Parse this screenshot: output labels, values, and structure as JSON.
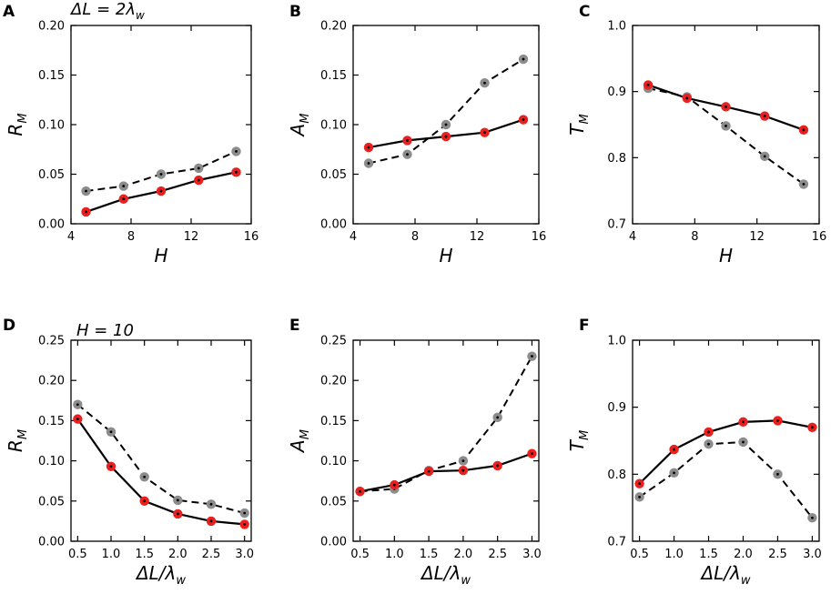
{
  "figure": {
    "colors": {
      "series_a": "#e8201e",
      "series_b": "#8c8c8c",
      "line": "#000000"
    }
  },
  "chart_data": [
    {
      "id": "A",
      "type": "line",
      "panel_letter": "A",
      "annotation": "ΔL = 2λw",
      "xlabel": "H",
      "ylabel": "RM",
      "xlim": [
        4,
        16
      ],
      "xticks": [
        4,
        8,
        12,
        16
      ],
      "xtick_labels": [
        "4",
        "8",
        "12",
        "16"
      ],
      "ylim": [
        0,
        0.2
      ],
      "yticks": [
        0,
        0.05,
        0.1,
        0.15,
        0.2
      ],
      "ytick_labels": [
        "0.00",
        "0.05",
        "0.10",
        "0.15",
        "0.20"
      ],
      "x": [
        5,
        7.5,
        10,
        12.5,
        15
      ],
      "series": [
        {
          "name": "solid",
          "style": "solid",
          "marker_color": "#e8201e",
          "values": [
            0.012,
            0.025,
            0.033,
            0.044,
            0.052
          ]
        },
        {
          "name": "dashed",
          "style": "dashed",
          "marker_color": "#8c8c8c",
          "values": [
            0.033,
            0.038,
            0.05,
            0.056,
            0.073
          ]
        }
      ]
    },
    {
      "id": "B",
      "type": "line",
      "panel_letter": "B",
      "annotation": "",
      "xlabel": "H",
      "ylabel": "AM",
      "xlim": [
        4,
        16
      ],
      "xticks": [
        4,
        8,
        12,
        16
      ],
      "xtick_labels": [
        "4",
        "8",
        "12",
        "16"
      ],
      "ylim": [
        0,
        0.2
      ],
      "yticks": [
        0,
        0.05,
        0.1,
        0.15,
        0.2
      ],
      "ytick_labels": [
        "0.00",
        "0.05",
        "0.10",
        "0.15",
        "0.20"
      ],
      "x": [
        5,
        7.5,
        10,
        12.5,
        15
      ],
      "series": [
        {
          "name": "solid",
          "style": "solid",
          "marker_color": "#e8201e",
          "values": [
            0.077,
            0.084,
            0.088,
            0.092,
            0.105
          ]
        },
        {
          "name": "dashed",
          "style": "dashed",
          "marker_color": "#8c8c8c",
          "values": [
            0.061,
            0.07,
            0.1,
            0.142,
            0.166
          ]
        }
      ]
    },
    {
      "id": "C",
      "type": "line",
      "panel_letter": "C",
      "annotation": "",
      "xlabel": "H",
      "ylabel": "TM",
      "xlim": [
        4,
        16
      ],
      "xticks": [
        4,
        8,
        12,
        16
      ],
      "xtick_labels": [
        "4",
        "8",
        "12",
        "16"
      ],
      "ylim": [
        0.7,
        1.0
      ],
      "yticks": [
        0.7,
        0.8,
        0.9,
        1.0
      ],
      "ytick_labels": [
        "0.7",
        "0.8",
        "0.9",
        "1.0"
      ],
      "x": [
        5,
        7.5,
        10,
        12.5,
        15
      ],
      "series": [
        {
          "name": "solid",
          "style": "solid",
          "marker_color": "#e8201e",
          "values": [
            0.91,
            0.89,
            0.877,
            0.863,
            0.842
          ]
        },
        {
          "name": "dashed",
          "style": "dashed",
          "marker_color": "#8c8c8c",
          "values": [
            0.905,
            0.892,
            0.848,
            0.802,
            0.76
          ]
        }
      ]
    },
    {
      "id": "D",
      "type": "line",
      "panel_letter": "D",
      "annotation": "H = 10",
      "xlabel": "ΔL/λw",
      "ylabel": "RM",
      "xlim": [
        0.4,
        3.1
      ],
      "xticks": [
        0.5,
        1.0,
        1.5,
        2.0,
        2.5,
        3.0
      ],
      "xtick_labels": [
        "0.5",
        "1.0",
        "1.5",
        "2.0",
        "2.5",
        "3.0"
      ],
      "ylim": [
        0,
        0.25
      ],
      "yticks": [
        0,
        0.05,
        0.1,
        0.15,
        0.2,
        0.25
      ],
      "ytick_labels": [
        "0.00",
        "0.05",
        "0.10",
        "0.15",
        "0.20",
        "0.25"
      ],
      "x": [
        0.5,
        1.0,
        1.5,
        2.0,
        2.5,
        3.0
      ],
      "series": [
        {
          "name": "solid",
          "style": "solid",
          "marker_color": "#e8201e",
          "values": [
            0.152,
            0.093,
            0.05,
            0.034,
            0.025,
            0.021
          ]
        },
        {
          "name": "dashed",
          "style": "dashed",
          "marker_color": "#8c8c8c",
          "values": [
            0.17,
            0.136,
            0.08,
            0.051,
            0.046,
            0.035
          ]
        }
      ]
    },
    {
      "id": "E",
      "type": "line",
      "panel_letter": "E",
      "annotation": "",
      "xlabel": "ΔL/λw",
      "ylabel": "AM",
      "xlim": [
        0.4,
        3.1
      ],
      "xticks": [
        0.5,
        1.0,
        1.5,
        2.0,
        2.5,
        3.0
      ],
      "xtick_labels": [
        "0.5",
        "1.0",
        "1.5",
        "2.0",
        "2.5",
        "3.0"
      ],
      "ylim": [
        0,
        0.25
      ],
      "yticks": [
        0,
        0.05,
        0.1,
        0.15,
        0.2,
        0.25
      ],
      "ytick_labels": [
        "0.00",
        "0.05",
        "0.10",
        "0.15",
        "0.20",
        "0.25"
      ],
      "x": [
        0.5,
        1.0,
        1.5,
        2.0,
        2.5,
        3.0
      ],
      "series": [
        {
          "name": "solid",
          "style": "solid",
          "marker_color": "#e8201e",
          "values": [
            0.062,
            0.07,
            0.087,
            0.088,
            0.094,
            0.109
          ]
        },
        {
          "name": "dashed",
          "style": "dashed",
          "marker_color": "#8c8c8c",
          "values": [
            0.062,
            0.065,
            0.088,
            0.1,
            0.154,
            0.23
          ]
        }
      ]
    },
    {
      "id": "F",
      "type": "line",
      "panel_letter": "F",
      "annotation": "",
      "xlabel": "ΔL/λw",
      "ylabel": "TM",
      "xlim": [
        0.4,
        3.1
      ],
      "xticks": [
        0.5,
        1.0,
        1.5,
        2.0,
        2.5,
        3.0
      ],
      "xtick_labels": [
        "0.5",
        "1.0",
        "1.5",
        "2.0",
        "2.5",
        "3.0"
      ],
      "ylim": [
        0.7,
        1.0
      ],
      "yticks": [
        0.7,
        0.8,
        0.9,
        1.0
      ],
      "ytick_labels": [
        "0.7",
        "0.8",
        "0.9",
        "1.0"
      ],
      "x": [
        0.5,
        1.0,
        1.5,
        2.0,
        2.5,
        3.0
      ],
      "series": [
        {
          "name": "solid",
          "style": "solid",
          "marker_color": "#e8201e",
          "values": [
            0.786,
            0.837,
            0.863,
            0.878,
            0.88,
            0.87
          ]
        },
        {
          "name": "dashed",
          "style": "dashed",
          "marker_color": "#8c8c8c",
          "values": [
            0.766,
            0.802,
            0.845,
            0.848,
            0.8,
            0.735
          ]
        }
      ]
    }
  ]
}
